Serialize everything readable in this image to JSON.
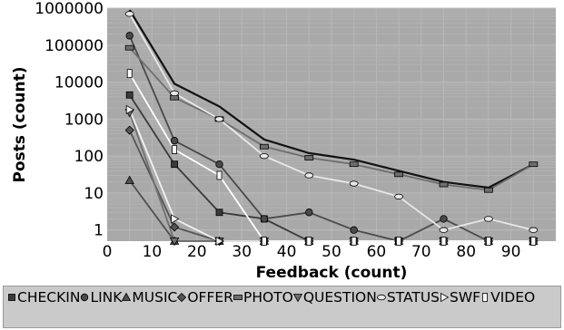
{
  "chart_data": {
    "type": "line",
    "xlabel": "Feedback (count)",
    "ylabel": "Posts (count)",
    "xlim": [
      0,
      100
    ],
    "ylim": [
      0.5,
      1000000
    ],
    "y_scale": "log",
    "x_ticks": [
      "0",
      "10",
      "20",
      "30",
      "40",
      "50",
      "60",
      "70",
      "80",
      "90"
    ],
    "y_ticks": [
      "1000000",
      "100000",
      "10000",
      "1000",
      "100",
      "10",
      "1"
    ],
    "grid": true,
    "legend_position": "bottom",
    "background": "#a9a9a9",
    "x": [
      5,
      15,
      25,
      35,
      45,
      55,
      65,
      75,
      85,
      95
    ],
    "series": [
      {
        "name": "",
        "color": "#111111",
        "marker": "none",
        "values": [
          900000,
          9000,
          2200,
          280,
          120,
          80,
          40,
          20,
          14,
          60
        ]
      },
      {
        "name": "CHECKIN",
        "color": "#3a3a3a",
        "marker": "square",
        "values": [
          4500,
          60,
          3,
          2,
          0.5,
          0.5,
          0.5,
          0.5,
          0.5,
          0.5
        ]
      },
      {
        "name": "LINK",
        "color": "#4a4a4a",
        "marker": "circle",
        "values": [
          180000,
          260,
          60,
          2,
          3,
          1,
          0.5,
          2,
          0.5,
          0.5
        ]
      },
      {
        "name": "MUSIC",
        "color": "#505050",
        "marker": "triangle",
        "values": [
          22,
          0.5,
          0.5,
          0.5,
          0.5,
          0.5,
          0.5,
          0.5,
          0.5,
          0.5
        ]
      },
      {
        "name": "OFFER",
        "color": "#555555",
        "marker": "diamond",
        "values": [
          500,
          1.2,
          0.5,
          0.5,
          0.5,
          0.5,
          0.5,
          0.5,
          0.5,
          0.5
        ]
      },
      {
        "name": "PHOTO",
        "color": "#6e6e6e",
        "marker": "rect",
        "values": [
          85000,
          3800,
          1000,
          180,
          90,
          60,
          32,
          17,
          12,
          60
        ]
      },
      {
        "name": "QUESTION",
        "color": "#707070",
        "marker": "triangle-down",
        "values": [
          1500,
          0.5,
          0.5,
          0.5,
          0.5,
          0.5,
          0.5,
          0.5,
          0.5,
          0.5
        ]
      },
      {
        "name": "STATUS",
        "color": "#e8e8e8",
        "marker": "ellipse",
        "values": [
          700000,
          5000,
          1000,
          100,
          30,
          18,
          8,
          1,
          2,
          1
        ]
      },
      {
        "name": "SWF",
        "color": "#f2f2f2",
        "marker": "triangle-right",
        "values": [
          1800,
          2,
          0.5,
          0.5,
          0.5,
          0.5,
          0.5,
          0.5,
          0.5,
          0.5
        ]
      },
      {
        "name": "VIDEO",
        "color": "#ffffff",
        "marker": "tall-rect",
        "values": [
          17000,
          150,
          30,
          0.5,
          0.5,
          0.5,
          0.5,
          0.5,
          0.5,
          0.5
        ]
      }
    ]
  }
}
